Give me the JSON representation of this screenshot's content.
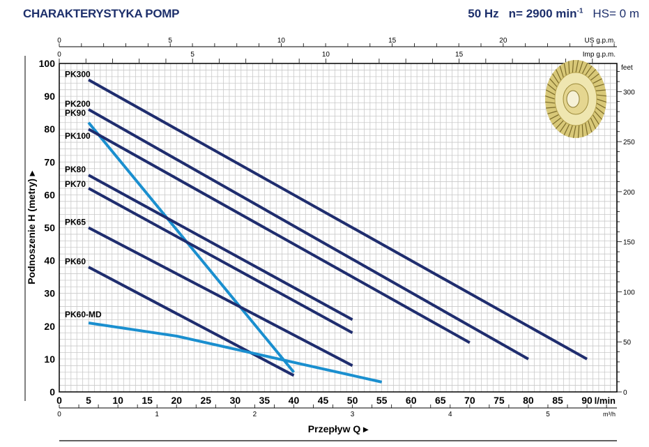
{
  "header": {
    "title": "CHARAKTERYSTYKA POMP",
    "frequency": "50 Hz",
    "speed_prefix": "n= 2900 min",
    "speed_exp": "-1",
    "hs": "HS= 0 m"
  },
  "chart_data": {
    "type": "line",
    "title": "",
    "xlabel": "Przepływ Q",
    "ylabel": "Podnoszenie H (metry)",
    "x_unit": "l/min",
    "xlim": [
      0,
      95
    ],
    "ylim": [
      0,
      100
    ],
    "grid": true,
    "x_ticks": [
      0,
      5,
      10,
      15,
      20,
      25,
      30,
      35,
      40,
      45,
      50,
      55,
      60,
      65,
      70,
      75,
      80,
      85,
      90
    ],
    "y_ticks": [
      0,
      10,
      20,
      30,
      40,
      50,
      60,
      70,
      80,
      90,
      100
    ],
    "secondary_axes": {
      "us_gpm": {
        "label": "US g.p.m.",
        "ticks": [
          0,
          5,
          10,
          15,
          20
        ]
      },
      "imp_gpm": {
        "label": "Imp g.p.m.",
        "ticks": [
          0,
          5,
          10,
          15
        ]
      },
      "m3h": {
        "label": "m³/h",
        "ticks": [
          0,
          1,
          2,
          3,
          4,
          5
        ]
      },
      "feet": {
        "label": "feet",
        "ticks": [
          0,
          50,
          100,
          150,
          200,
          250,
          300
        ]
      }
    },
    "colors": {
      "dark": "#1f2d6e",
      "light": "#1a8fcf",
      "grid": "#c9c9c9"
    },
    "series": [
      {
        "name": "PK300",
        "color": "dark",
        "points": [
          [
            5,
            95
          ],
          [
            90,
            10
          ]
        ]
      },
      {
        "name": "PK200",
        "color": "dark",
        "points": [
          [
            5,
            86
          ],
          [
            80,
            10
          ]
        ]
      },
      {
        "name": "PK90",
        "color": "light",
        "points": [
          [
            5,
            82
          ],
          [
            40,
            6
          ]
        ]
      },
      {
        "name": "PK100",
        "color": "dark",
        "points": [
          [
            5,
            80
          ],
          [
            70,
            15
          ]
        ]
      },
      {
        "name": "PK80",
        "color": "dark",
        "points": [
          [
            5,
            66
          ],
          [
            50,
            22
          ]
        ]
      },
      {
        "name": "PK70",
        "color": "dark",
        "points": [
          [
            5,
            62
          ],
          [
            50,
            18
          ]
        ]
      },
      {
        "name": "PK65",
        "color": "dark",
        "points": [
          [
            5,
            50
          ],
          [
            50,
            8
          ]
        ]
      },
      {
        "name": "PK60",
        "color": "dark",
        "points": [
          [
            5,
            38
          ],
          [
            40,
            5
          ]
        ]
      },
      {
        "name": "PK60-MD",
        "color": "light",
        "points": [
          [
            5,
            21
          ],
          [
            20,
            17
          ],
          [
            35,
            11
          ],
          [
            45,
            7
          ],
          [
            55,
            3
          ]
        ]
      }
    ]
  }
}
